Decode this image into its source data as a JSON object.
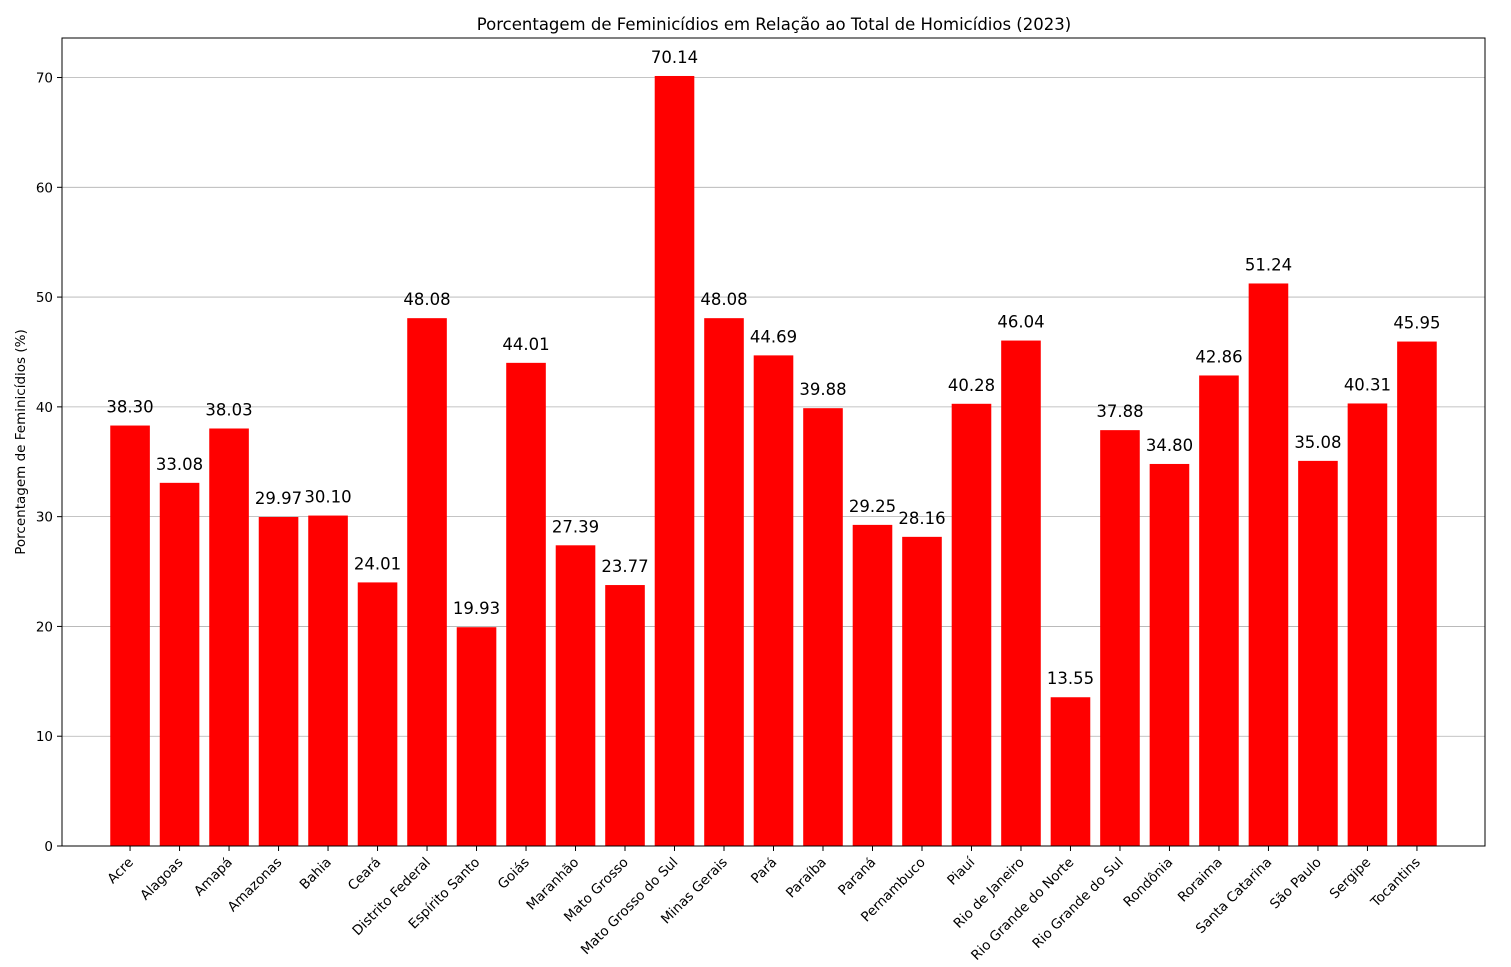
{
  "chart_data": {
    "type": "bar",
    "title": "Porcentagem de Feminicídios em Relação ao Total de Homicídios (2023)",
    "xlabel": "",
    "ylabel": "Porcentagem de Feminicídios (%)",
    "ylim": [
      0,
      73.6
    ],
    "yticks": [
      0,
      10,
      20,
      30,
      40,
      50,
      60,
      70
    ],
    "grid": "horizontal",
    "bar_color": "#ff0000",
    "categories": [
      "Acre",
      "Alagoas",
      "Amapá",
      "Amazonas",
      "Bahia",
      "Ceará",
      "Distrito Federal",
      "Espírito Santo",
      "Goiás",
      "Maranhão",
      "Mato Grosso",
      "Mato Grosso do Sul",
      "Minas Gerais",
      "Pará",
      "Paraíba",
      "Paraná",
      "Pernambuco",
      "Piauí",
      "Rio de Janeiro",
      "Rio Grande do Norte",
      "Rio Grande do Sul",
      "Rondônia",
      "Roraima",
      "Santa Catarina",
      "São Paulo",
      "Sergipe",
      "Tocantins"
    ],
    "values": [
      38.3,
      33.08,
      38.03,
      29.97,
      30.1,
      24.01,
      48.08,
      19.93,
      44.01,
      27.39,
      23.77,
      70.14,
      48.08,
      44.69,
      39.88,
      29.25,
      28.16,
      40.28,
      46.04,
      13.55,
      37.88,
      34.8,
      42.86,
      51.24,
      35.08,
      40.31,
      45.95
    ],
    "data_labels": [
      "38.30",
      "33.08",
      "38.03",
      "29.97",
      "30.10",
      "24.01",
      "48.08",
      "19.93",
      "44.01",
      "27.39",
      "23.77",
      "70.14",
      "48.08",
      "44.69",
      "39.88",
      "29.25",
      "28.16",
      "40.28",
      "46.04",
      "13.55",
      "37.88",
      "34.80",
      "42.86",
      "51.24",
      "35.08",
      "40.31",
      "45.95"
    ]
  }
}
